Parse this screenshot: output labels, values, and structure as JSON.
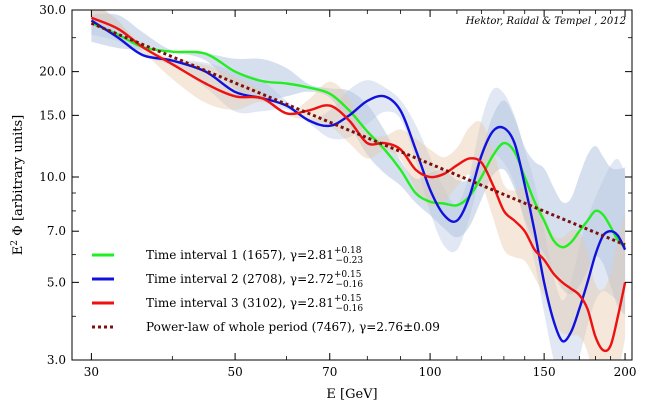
{
  "chart_data": {
    "type": "line",
    "credit": "Hektor, Raidal & Tempel , 2012",
    "xlabel": "E [GeV]",
    "ylabel_main": "E",
    "ylabel_sup": "2",
    "ylabel_rest": " Φ [arbitrary units]",
    "x_scale": "log",
    "y_scale": "log",
    "xlim": [
      28,
      205
    ],
    "ylim": [
      3.0,
      30.0
    ],
    "x_ticks": [
      30,
      50,
      70,
      100,
      150,
      200
    ],
    "x_tick_labels": [
      "30",
      "50",
      "70",
      "100",
      "150",
      "200"
    ],
    "y_ticks": [
      3.0,
      5.0,
      7.0,
      10.0,
      15.0,
      20.0,
      30.0
    ],
    "y_tick_labels": [
      "3.0",
      "5.0",
      "7.0",
      "10.0",
      "15.0",
      "20.0",
      "30.0"
    ],
    "legend_position": "bottom-left",
    "series": [
      {
        "label": "Time interval 1 (1657), γ=2.81",
        "gamma_sup": "+0.18",
        "gamma_sub": "−0.23",
        "color": "#22ee22",
        "band_color": "#9ab2d6",
        "style": "solid",
        "x": [
          30,
          33,
          36,
          40,
          45,
          50,
          55,
          60,
          65,
          70,
          75,
          80,
          85,
          90,
          95,
          100,
          105,
          110,
          115,
          120,
          125,
          130,
          135,
          140,
          145,
          150,
          155,
          160,
          165,
          170,
          175,
          180,
          185,
          190,
          195,
          200
        ],
        "y": [
          27.5,
          25.5,
          23.5,
          22.8,
          22.5,
          20.0,
          18.8,
          18.5,
          18.0,
          17.3,
          15.5,
          13.5,
          12.0,
          10.5,
          9.0,
          8.5,
          8.4,
          8.3,
          8.8,
          10.0,
          11.5,
          12.5,
          11.8,
          10.0,
          8.5,
          7.5,
          6.6,
          6.3,
          6.5,
          7.0,
          7.5,
          8.0,
          7.8,
          7.2,
          6.6,
          6.3
        ]
      },
      {
        "label": "Time interval 2 (2708), γ=2.72",
        "gamma_sup": "+0.15",
        "gamma_sub": "−0.16",
        "color": "#1111dd",
        "band_color": "#b8c8e2",
        "style": "solid",
        "x": [
          30,
          33,
          36,
          40,
          45,
          50,
          55,
          60,
          65,
          70,
          75,
          80,
          85,
          90,
          95,
          100,
          105,
          110,
          115,
          120,
          125,
          130,
          135,
          140,
          145,
          150,
          155,
          160,
          165,
          170,
          175,
          180,
          185,
          190,
          195,
          200
        ],
        "y": [
          28.0,
          25.0,
          22.3,
          21.5,
          20.0,
          17.5,
          16.8,
          16.0,
          14.5,
          14.0,
          15.0,
          16.5,
          17.0,
          15.5,
          12.0,
          9.2,
          7.8,
          7.5,
          8.8,
          11.5,
          13.5,
          13.8,
          12.5,
          9.5,
          7.0,
          5.0,
          3.9,
          3.4,
          3.6,
          4.2,
          5.0,
          6.0,
          6.8,
          7.0,
          6.8,
          6.2
        ]
      },
      {
        "label": "Time interval 3 (3102), γ=2.81",
        "gamma_sup": "+0.15",
        "gamma_sub": "−0.16",
        "color": "#ee1111",
        "band_color": "#e6c8a6",
        "style": "solid",
        "x": [
          30,
          33,
          36,
          40,
          45,
          50,
          55,
          60,
          65,
          70,
          75,
          80,
          85,
          90,
          95,
          100,
          105,
          110,
          115,
          120,
          125,
          130,
          135,
          140,
          145,
          150,
          155,
          160,
          165,
          170,
          175,
          180,
          185,
          190,
          195,
          200
        ],
        "y": [
          28.5,
          26.5,
          23.5,
          21.0,
          18.5,
          17.0,
          16.8,
          15.2,
          15.5,
          16.0,
          14.5,
          12.5,
          12.5,
          12.0,
          10.5,
          10.0,
          10.2,
          10.8,
          11.3,
          11.0,
          9.5,
          8.0,
          7.5,
          7.0,
          6.2,
          5.8,
          5.3,
          5.0,
          4.8,
          4.6,
          4.2,
          3.5,
          3.2,
          3.3,
          4.0,
          5.0
        ]
      },
      {
        "label": "Power-law of whole period (7467), γ=2.76±0.09",
        "color": "#7a1010",
        "style": "dotted",
        "x": [
          30,
          200
        ],
        "y": [
          27.5,
          6.4
        ]
      }
    ]
  }
}
